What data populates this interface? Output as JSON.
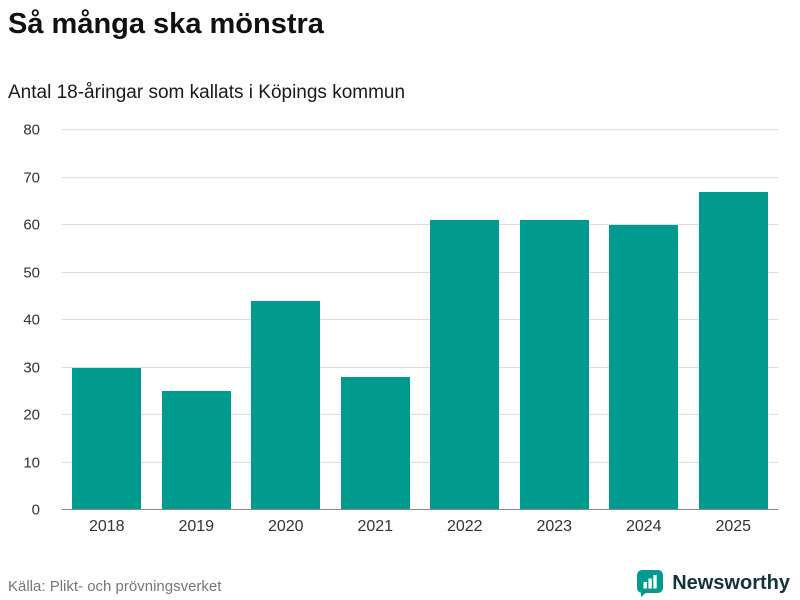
{
  "header": {
    "title": "Så många ska mönstra",
    "subtitle": "Antal 18-åringar som kallats i Köpings kommun"
  },
  "chart_data": {
    "type": "bar",
    "categories": [
      "2018",
      "2019",
      "2020",
      "2021",
      "2022",
      "2023",
      "2024",
      "2025"
    ],
    "values": [
      30,
      25,
      44,
      28,
      61,
      61,
      60,
      67
    ],
    "title": "Så många ska mönstra",
    "subtitle": "Antal 18-åringar som kallats i Köpings kommun",
    "xlabel": "",
    "ylabel": "",
    "ylim": [
      0,
      80
    ],
    "ytick_step": 10,
    "grid": true,
    "legend": "none",
    "bar_color": "#009a8e"
  },
  "footer": {
    "source": "Källa: Plikt- och prövningsverket",
    "brand": "Newsworthy"
  },
  "colors": {
    "accent": "#009a8e",
    "grid": "#dcdcdc",
    "axis": "#8a8a8a",
    "text": "#333333",
    "muted": "#767676",
    "brand_text": "#14323a"
  }
}
